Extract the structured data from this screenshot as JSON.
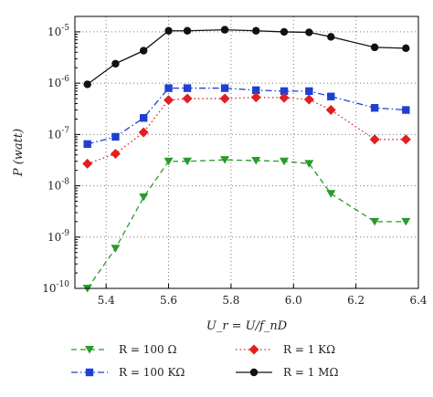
{
  "chart_data": {
    "type": "line",
    "title": "",
    "xlabel": "U_r = U/f_nD",
    "ylabel": "P (watt)",
    "xlim": [
      5.3,
      6.4
    ],
    "ylim": [
      1e-10,
      2e-05
    ],
    "yscale": "log",
    "grid": true,
    "x_ticks": [
      5.4,
      5.6,
      5.8,
      6.0,
      6.2,
      6.4
    ],
    "x_tick_labels": [
      "5.4",
      "5.6",
      "5.8",
      "6.0",
      "6.2",
      "6.4"
    ],
    "y_ticks": [
      1e-10,
      1e-09,
      1e-08,
      1e-07,
      1e-06,
      1e-05
    ],
    "y_tick_exponents": [
      "-10",
      "-9",
      "-8",
      "-7",
      "-6",
      "-5"
    ],
    "y_tick_base": "10",
    "legend_position": "bottom",
    "series": [
      {
        "name": "R = 100 Ω",
        "color": "#2a9a2a",
        "marker": "triangle-down",
        "linestyle": "dashed",
        "x": [
          5.34,
          5.43,
          5.52,
          5.6,
          5.66,
          5.78,
          5.88,
          5.97,
          6.05,
          6.12,
          6.26,
          6.36
        ],
        "y": [
          1e-10,
          6e-10,
          6e-09,
          3e-08,
          3e-08,
          3.2e-08,
          3.1e-08,
          3e-08,
          2.7e-08,
          7e-09,
          2e-09,
          2e-09
        ]
      },
      {
        "name": "R = 100 KΩ",
        "color": "#1f3fd0",
        "marker": "square",
        "linestyle": "dashdot",
        "x": [
          5.34,
          5.43,
          5.52,
          5.6,
          5.66,
          5.78,
          5.88,
          5.97,
          6.05,
          6.12,
          6.26,
          6.36
        ],
        "y": [
          6.5e-08,
          9e-08,
          2.1e-07,
          8e-07,
          8e-07,
          8e-07,
          7.3e-07,
          7e-07,
          7e-07,
          5.5e-07,
          3.3e-07,
          3e-07
        ]
      },
      {
        "name": "R = 1 KΩ",
        "color": "#e02020",
        "marker": "diamond",
        "linestyle": "dotted",
        "x": [
          5.34,
          5.43,
          5.52,
          5.6,
          5.66,
          5.78,
          5.88,
          5.97,
          6.05,
          6.12,
          6.26,
          6.36
        ],
        "y": [
          2.7e-08,
          4.2e-08,
          1.1e-07,
          4.7e-07,
          5e-07,
          5e-07,
          5.3e-07,
          5.2e-07,
          4.8e-07,
          3e-07,
          8e-08,
          8e-08
        ]
      },
      {
        "name": "R = 1 MΩ",
        "color": "#111111",
        "marker": "circle",
        "linestyle": "solid",
        "x": [
          5.34,
          5.43,
          5.52,
          5.6,
          5.66,
          5.78,
          5.88,
          5.97,
          6.05,
          6.12,
          6.26,
          6.36
        ],
        "y": [
          9.5e-07,
          2.4e-06,
          4.3e-06,
          1.05e-05,
          1.05e-05,
          1.1e-05,
          1.05e-05,
          1e-05,
          9.8e-06,
          8e-06,
          5e-06,
          4.8e-06
        ]
      }
    ]
  }
}
